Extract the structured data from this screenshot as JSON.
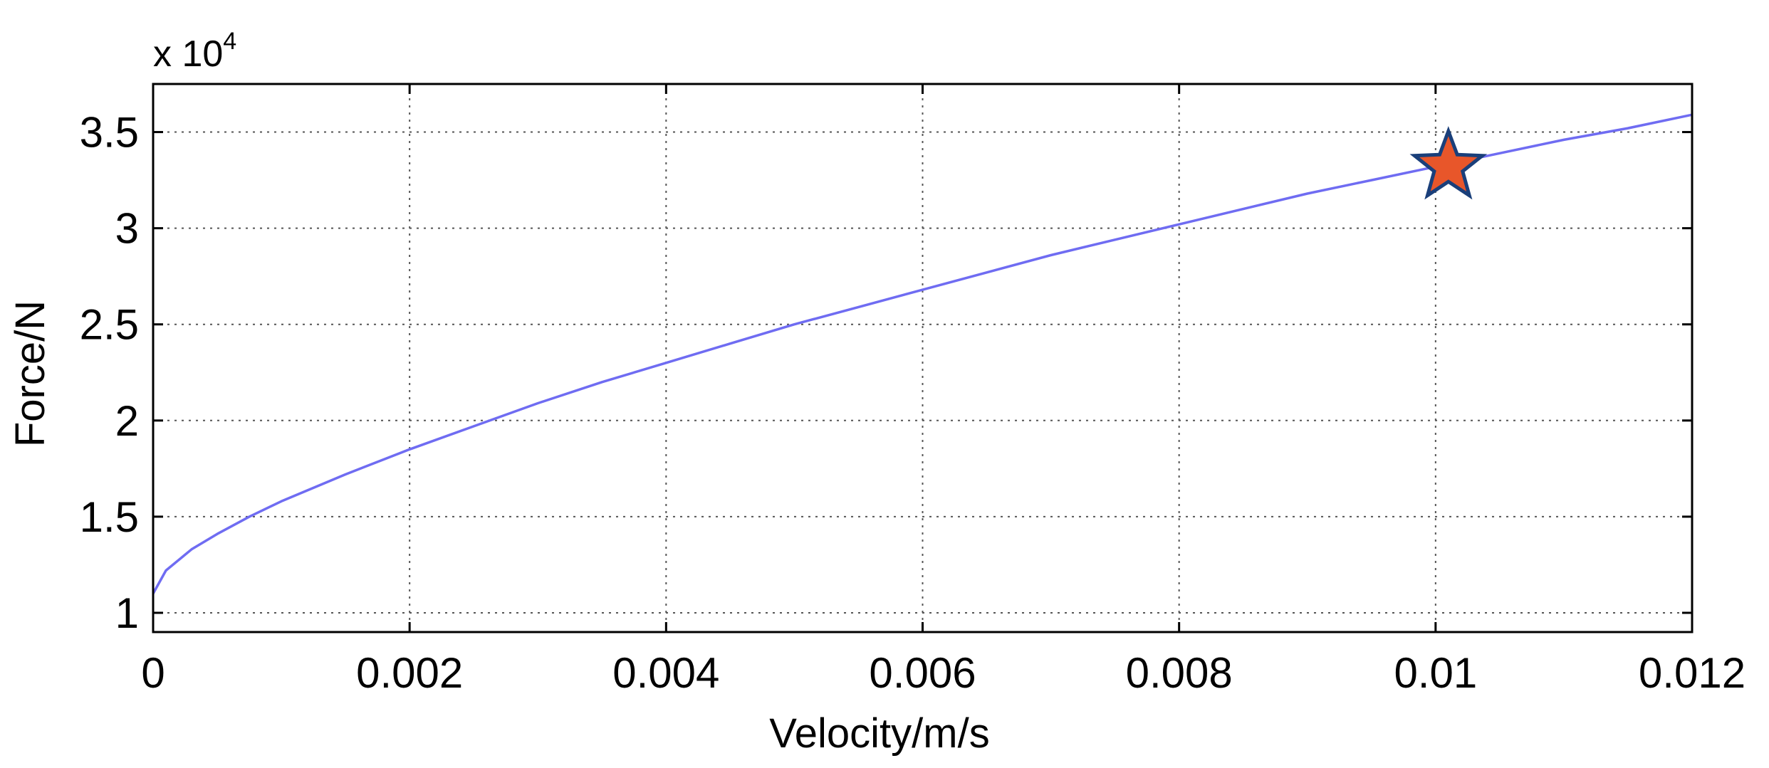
{
  "chart_data": {
    "type": "line",
    "xlabel": "Velocity/m/s",
    "ylabel": "Force/N",
    "y_multiplier": {
      "base": "x 10",
      "exponent": "4"
    },
    "xlim": [
      0,
      0.012
    ],
    "ylim": [
      0.9,
      3.75
    ],
    "x_ticks": [
      0,
      0.002,
      0.004,
      0.006,
      0.008,
      0.01,
      0.012
    ],
    "x_tick_labels": [
      "0",
      "0.002",
      "0.004",
      "0.006",
      "0.008",
      "0.01",
      "0.012"
    ],
    "y_ticks": [
      1,
      1.5,
      2,
      2.5,
      3,
      3.5
    ],
    "y_tick_labels": [
      "1",
      "1.5",
      "2",
      "2.5",
      "3",
      "3.5"
    ],
    "grid": true,
    "grid_style": "dotted",
    "series": [
      {
        "color": "#6f6cf2",
        "x": [
          0,
          0.0001,
          0.0003,
          0.0005,
          0.00075,
          0.001,
          0.0015,
          0.002,
          0.0025,
          0.003,
          0.0035,
          0.004,
          0.0045,
          0.005,
          0.0055,
          0.006,
          0.0065,
          0.007,
          0.0075,
          0.008,
          0.0085,
          0.009,
          0.0095,
          0.01,
          0.0105,
          0.011,
          0.0115,
          0.012
        ],
        "y": [
          1.1,
          1.22,
          1.33,
          1.41,
          1.5,
          1.58,
          1.72,
          1.85,
          1.97,
          2.09,
          2.2,
          2.3,
          2.4,
          2.5,
          2.59,
          2.68,
          2.77,
          2.86,
          2.94,
          3.02,
          3.1,
          3.18,
          3.25,
          3.32,
          3.39,
          3.46,
          3.52,
          3.59
        ]
      }
    ],
    "markers": [
      {
        "shape": "star",
        "x": 0.0101,
        "y": 3.32,
        "fill": "#e8562a",
        "stroke": "#1a3f7a"
      }
    ]
  }
}
